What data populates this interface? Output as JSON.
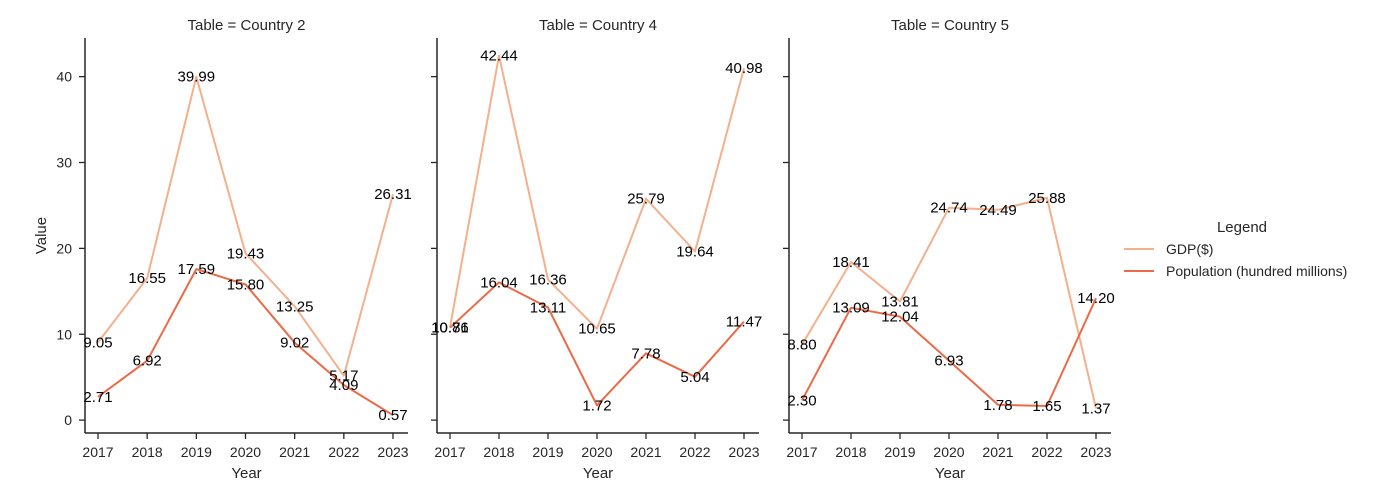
{
  "chart_data": {
    "type": "line",
    "title": "",
    "xlabel": "Year",
    "ylabel": "Value",
    "x": [
      "2017",
      "2018",
      "2019",
      "2020",
      "2021",
      "2022",
      "2023"
    ],
    "ylim": [
      -1.5,
      44.5
    ],
    "yticks": [
      0,
      10,
      20,
      30,
      40
    ],
    "grid": false,
    "legend": {
      "title": "Legend",
      "placement": "right",
      "entries": [
        "GDP($)",
        "Population (hundred millions)"
      ]
    },
    "colors": {
      "GDP($)": "#f4b08c",
      "Population (hundred millions)": "#ea6b48"
    },
    "panels": [
      {
        "title": "Table = Country 2",
        "series": [
          {
            "name": "GDP($)",
            "values": [
              9.05,
              16.55,
              39.99,
              19.43,
              13.25,
              5.17,
              26.31
            ]
          },
          {
            "name": "Population (hundred millions)",
            "values": [
              2.71,
              6.92,
              17.59,
              15.8,
              9.02,
              4.09,
              0.57
            ]
          }
        ]
      },
      {
        "title": "Table = Country 4",
        "series": [
          {
            "name": "GDP($)",
            "values": [
              10.81,
              42.44,
              16.36,
              10.65,
              25.79,
              19.64,
              40.98
            ]
          },
          {
            "name": "Population (hundred millions)",
            "values": [
              10.76,
              16.04,
              13.11,
              1.72,
              7.78,
              5.04,
              11.47
            ]
          }
        ]
      },
      {
        "title": "Table = Country 5",
        "series": [
          {
            "name": "GDP($)",
            "values": [
              8.8,
              18.41,
              13.81,
              24.74,
              24.49,
              25.88,
              1.37
            ]
          },
          {
            "name": "Population (hundred millions)",
            "values": [
              2.3,
              13.09,
              12.04,
              6.93,
              1.78,
              1.65,
              14.2
            ]
          }
        ]
      }
    ]
  }
}
